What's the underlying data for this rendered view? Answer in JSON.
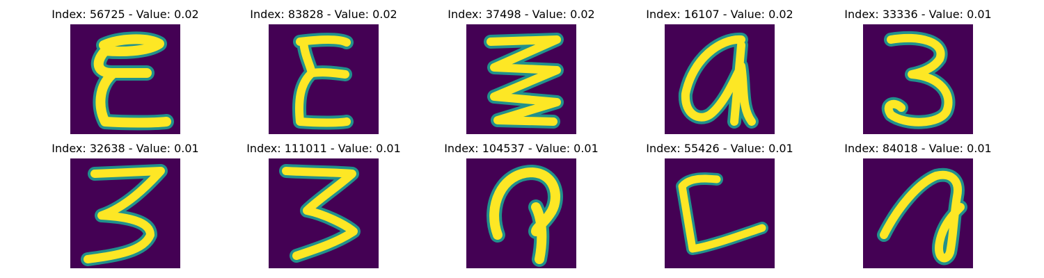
{
  "colors": {
    "background": "#440154",
    "mid": "#21918c",
    "stroke": "#fde725"
  },
  "panels": [
    {
      "title": "Index: 56725 - Value: 0.02",
      "glyph": "E-like"
    },
    {
      "title": "Index: 83828 - Value: 0.02",
      "glyph": "E-like"
    },
    {
      "title": "Index: 37498 - Value: 0.02",
      "glyph": "zigzag"
    },
    {
      "title": "Index: 16107 - Value: 0.02",
      "glyph": "a-like"
    },
    {
      "title": "Index: 33336 - Value: 0.01",
      "glyph": "3"
    },
    {
      "title": "Index: 32638 - Value: 0.01",
      "glyph": "3"
    },
    {
      "title": "Index: 111011 - Value: 0.01",
      "glyph": "3-like"
    },
    {
      "title": "Index: 104537 - Value: 0.01",
      "glyph": "hook"
    },
    {
      "title": "Index: 55426 - Value: 0.01",
      "glyph": "L-like"
    },
    {
      "title": "Index: 84018 - Value: 0.01",
      "glyph": "loop"
    }
  ]
}
